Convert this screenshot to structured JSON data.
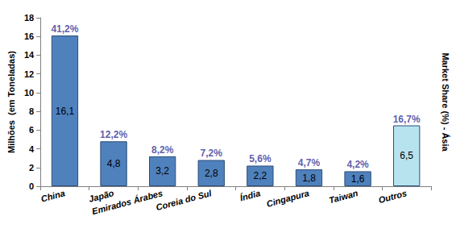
{
  "chart_data": {
    "type": "bar",
    "categories": [
      "China",
      "Japão",
      "Emirados Árabes",
      "Coreia do Sul",
      "Índia",
      "Cingapura",
      "Taiwan",
      "Outros"
    ],
    "values": [
      16.1,
      4.8,
      3.2,
      2.8,
      2.2,
      1.8,
      1.6,
      6.5
    ],
    "value_labels": [
      "16,1",
      "4,8",
      "3,2",
      "2,8",
      "2,2",
      "1,8",
      "1,6",
      "6,5"
    ],
    "market_share": [
      41.2,
      12.2,
      8.2,
      7.2,
      5.6,
      4.7,
      4.2,
      16.7
    ],
    "market_share_labels": [
      "41,2%",
      "12,2%",
      "8,2%",
      "7,2%",
      "5,6%",
      "4,7%",
      "4,2%",
      "16,7%"
    ],
    "colors": [
      "#4F81BD",
      "#4F81BD",
      "#4F81BD",
      "#4F81BD",
      "#4F81BD",
      "#4F81BD",
      "#4F81BD",
      "#B7E3EE"
    ],
    "y_label": "Milhões  (em Toneladas)",
    "y2_label": "Market Share (%) - Ásia",
    "ylim": [
      0,
      18
    ],
    "yticks": [
      0,
      2,
      4,
      6,
      8,
      10,
      12,
      14,
      16,
      18
    ],
    "data_labels": true,
    "grid": false
  }
}
